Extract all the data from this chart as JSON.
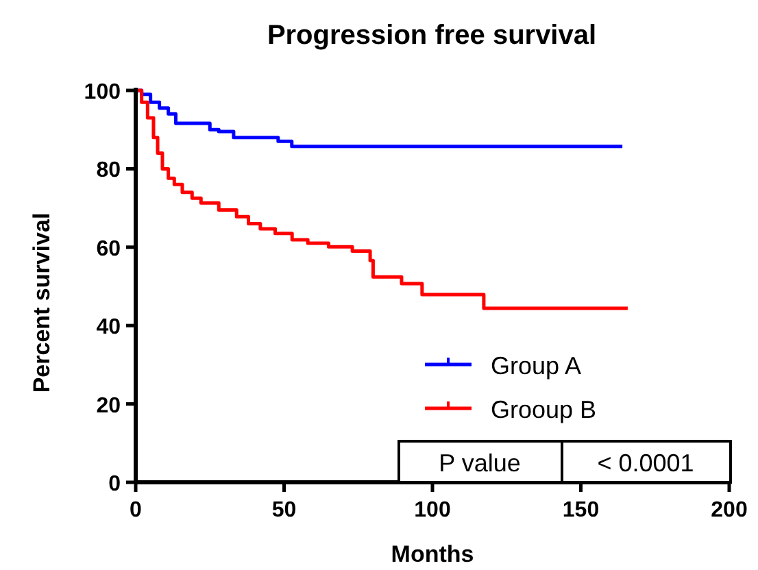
{
  "chart_data": {
    "type": "step",
    "title": "Progression free survival",
    "xlabel": "Months",
    "ylabel": "Percent survival",
    "xlim": [
      0,
      200
    ],
    "xticks": [
      0,
      50,
      100,
      150,
      200
    ],
    "ylim": [
      0,
      100
    ],
    "yticks": [
      0,
      20,
      40,
      60,
      80,
      100
    ],
    "grid": false,
    "legend": "bottom right",
    "annotations": [
      "P value",
      "< 0.0001"
    ],
    "series": [
      {
        "name": "Group A",
        "color": "#0000ff",
        "x": [
          0,
          2,
          5,
          8,
          11,
          13.5,
          25,
          28,
          33,
          48,
          52.6,
          164
        ],
        "values": [
          100,
          99,
          97,
          95.5,
          94,
          91.6,
          90,
          89.5,
          88,
          87,
          85.7,
          85.7
        ]
      },
      {
        "name": "Grooup B",
        "color": "#ff0000",
        "x": [
          0,
          2,
          4,
          6,
          7.4,
          9,
          11,
          13,
          15.7,
          19,
          22,
          28,
          34,
          38,
          42,
          47,
          52.7,
          58,
          65,
          73,
          79,
          80,
          89.6,
          96.5,
          117.3,
          165.8
        ],
        "values": [
          100,
          97,
          93,
          88,
          84,
          80,
          77.6,
          76,
          74,
          72.5,
          71.3,
          69.5,
          67.8,
          66,
          64.7,
          63.5,
          61.9,
          61,
          60.1,
          59,
          56.6,
          52.4,
          50.7,
          47.9,
          44.4,
          44.4
        ]
      }
    ]
  }
}
